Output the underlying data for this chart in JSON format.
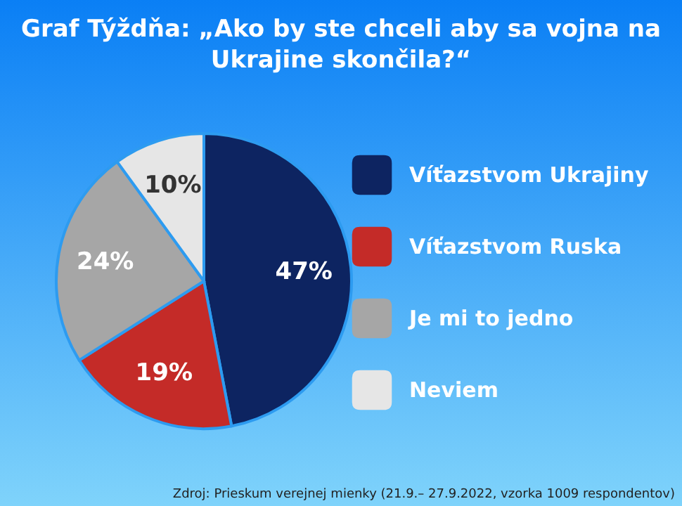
{
  "chart_data": {
    "type": "pie",
    "title": "Graf Týždňa: „Ako by ste chceli aby sa vojna na Ukrajine skončila?“",
    "categories": [
      "Víťazstvom Ukrajiny",
      "Víťazstvom Ruska",
      "Je mi to jedno",
      "Neviem"
    ],
    "values": [
      47,
      19,
      24,
      10
    ],
    "colors": [
      "#0d2461",
      "#c42b28",
      "#a6a6a6",
      "#e6e6e6"
    ],
    "value_labels": [
      "47%",
      "19%",
      "24%",
      "10%"
    ],
    "legend": "right",
    "annotations": [
      "Zdroj: Prieskum verejnej mienky (21.9.– 27.9.2022, vzorka 1009 respondentov)"
    ]
  }
}
